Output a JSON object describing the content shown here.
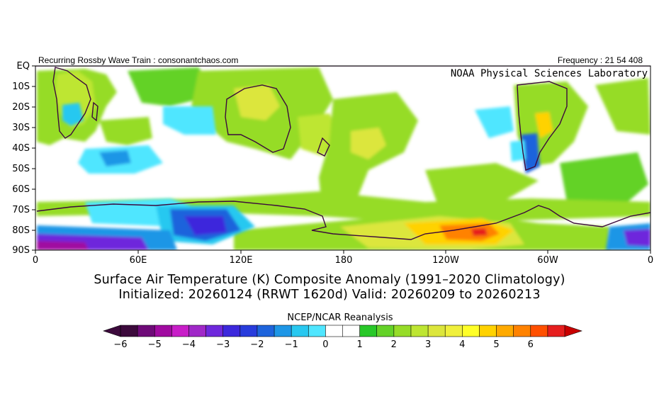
{
  "header": {
    "left_text": "Recurring Rossby Wave Train : consonantchaos.com",
    "right_text": "Frequency : 21 54 408",
    "lab_name": "NOAA Physical Sciences Laboratory"
  },
  "map": {
    "lat_labels": [
      "EQ",
      "10S",
      "20S",
      "30S",
      "40S",
      "50S",
      "60S",
      "70S",
      "80S",
      "90S"
    ],
    "lon_labels": [
      "0",
      "60E",
      "120E",
      "180",
      "120W",
      "60W",
      "0"
    ]
  },
  "title": {
    "line1": "Surface Air Temperature (K) Composite Anomaly (1991–2020 Climatology)",
    "line2": "Initialized: 20260124 (RRWT 1620d) Valid: 20260209 to 20260213"
  },
  "colorbar": {
    "source": "NCEP/NCAR Reanalysis",
    "tick_labels": [
      "−6",
      "−5",
      "−4",
      "−3",
      "−2",
      "−1",
      "0",
      "1",
      "2",
      "3",
      "4",
      "5",
      "6"
    ],
    "colors": [
      "#3c0a3c",
      "#6e0a78",
      "#a00aa0",
      "#c81ec8",
      "#a028c8",
      "#6e28dc",
      "#3c28dc",
      "#283cdc",
      "#1e64dc",
      "#1e96e6",
      "#28c8f0",
      "#50e6ff",
      "#ffffff",
      "#ffffff",
      "#28c828",
      "#64d228",
      "#96dc28",
      "#bee632",
      "#dce63c",
      "#f0f03c",
      "#ffff28",
      "#ffd200",
      "#ffaa00",
      "#ff8200",
      "#ff5000",
      "#e61e1e"
    ]
  }
}
